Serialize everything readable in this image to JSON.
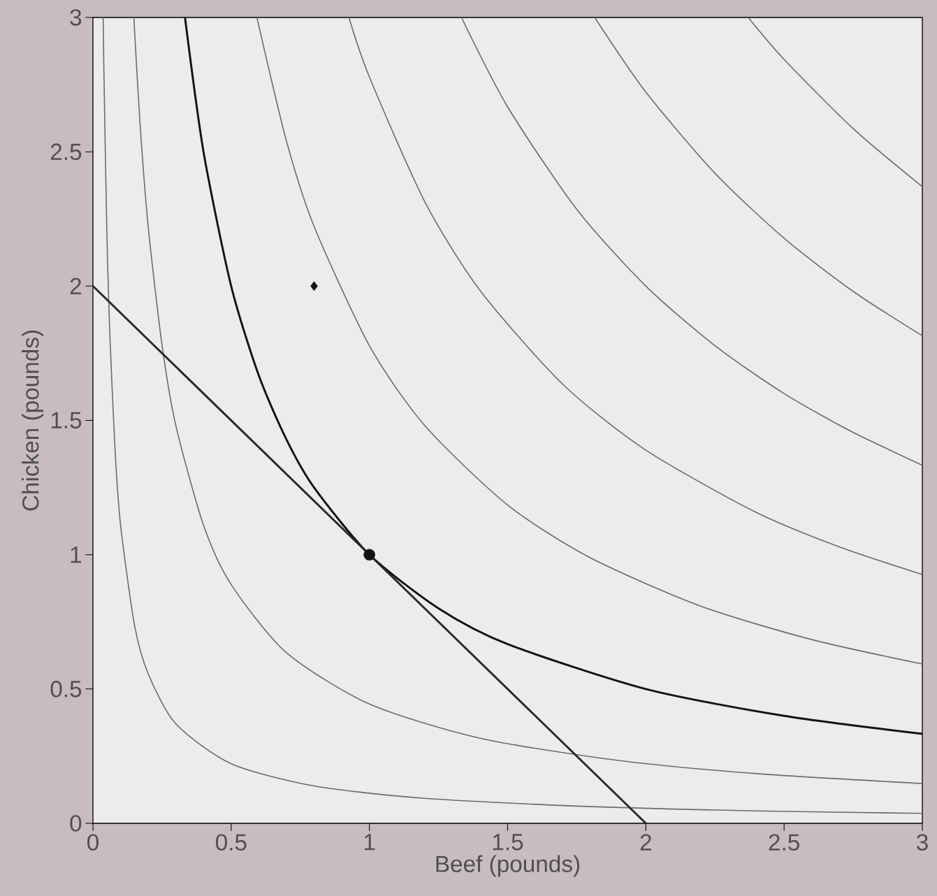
{
  "chart_data": {
    "type": "line",
    "xlabel": "Beef (pounds)",
    "ylabel": "Chicken (pounds)",
    "xlim": [
      0,
      3
    ],
    "ylim": [
      0,
      3
    ],
    "xticks": [
      0,
      0.5,
      1,
      1.5,
      2,
      2.5,
      3
    ],
    "yticks": [
      0,
      0.5,
      1,
      1.5,
      2,
      2.5,
      3
    ],
    "grid": false,
    "series": [
      {
        "color": "#6e6a70",
        "x": [
          0.037,
          0.04,
          0.05,
          0.06,
          0.08,
          0.1,
          0.15,
          0.2,
          0.3,
          0.5,
          0.8,
          1.2,
          1.8,
          2.4,
          3
        ],
        "values": [
          3.0,
          2.78,
          2.22,
          1.85,
          1.39,
          1.11,
          0.74,
          0.556,
          0.37,
          0.222,
          0.139,
          0.093,
          0.062,
          0.046,
          0.037
        ]
      },
      {
        "color": "#6e6a70",
        "x": [
          0.148,
          0.17,
          0.2,
          0.25,
          0.3,
          0.4,
          0.5,
          0.7,
          1,
          1.4,
          1.9,
          2.4,
          3
        ],
        "values": [
          3.0,
          2.61,
          2.22,
          1.78,
          1.48,
          1.11,
          0.889,
          0.635,
          0.444,
          0.317,
          0.234,
          0.185,
          0.148
        ]
      },
      {
        "color": "#141214",
        "x": [
          0.333,
          0.4,
          0.5,
          0.6,
          0.7,
          0.8,
          1,
          1.25,
          1.5,
          2,
          2.5,
          3
        ],
        "values": [
          3.0,
          2.5,
          2.0,
          1.667,
          1.429,
          1.25,
          1.0,
          0.8,
          0.667,
          0.5,
          0.4,
          0.333
        ]
      },
      {
        "color": "#6e6a70",
        "x": [
          0.593,
          0.7,
          0.8,
          1,
          1.2,
          1.5,
          1.8,
          2.2,
          2.6,
          3
        ],
        "values": [
          3.0,
          2.54,
          2.222,
          1.778,
          1.481,
          1.185,
          0.988,
          0.808,
          0.684,
          0.593
        ]
      },
      {
        "color": "#6e6a70",
        "x": [
          0.926,
          1,
          1.2,
          1.4,
          1.7,
          2,
          2.4,
          2.7,
          3
        ],
        "values": [
          3.0,
          2.778,
          2.315,
          1.984,
          1.634,
          1.389,
          1.157,
          1.029,
          0.926
        ]
      },
      {
        "color": "#6e6a70",
        "x": [
          1.333,
          1.5,
          1.75,
          2,
          2.25,
          2.5,
          2.75,
          3
        ],
        "values": [
          3.0,
          2.667,
          2.286,
          2.0,
          1.778,
          1.6,
          1.455,
          1.333
        ]
      },
      {
        "color": "#6e6a70",
        "x": [
          1.815,
          2,
          2.25,
          2.5,
          2.75,
          3
        ],
        "values": [
          3.0,
          2.722,
          2.42,
          2.178,
          1.98,
          1.815
        ]
      },
      {
        "color": "#6e6a70",
        "x": [
          2.37,
          2.5,
          2.75,
          3
        ],
        "values": [
          3.0,
          2.844,
          2.586,
          2.37
        ]
      },
      {
        "color": "#2a2630",
        "x": [
          0,
          2
        ],
        "values": [
          2,
          0
        ]
      },
      {
        "type": "scatter",
        "marker": "diamond",
        "color": "#141214",
        "x": [
          0.8
        ],
        "values": [
          2
        ]
      },
      {
        "type": "scatter",
        "marker": "circle",
        "color": "#141214",
        "x": [
          1
        ],
        "values": [
          1
        ]
      }
    ]
  }
}
